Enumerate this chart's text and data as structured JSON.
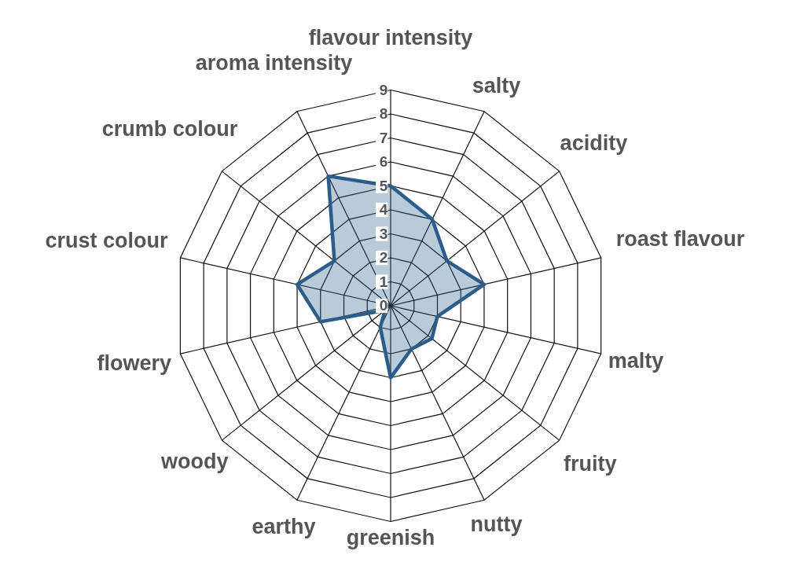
{
  "chart_data": {
    "type": "radar",
    "categories": [
      "flavour intensity",
      "salty",
      "acidity",
      "roast flavour",
      "malty",
      "fruity",
      "nutty",
      "greenish",
      "earthy",
      "woody",
      "flowery",
      "crust colour",
      "crumb colour",
      "aroma intensity"
    ],
    "series": [
      {
        "color": "#2c5d8a",
        "values": [
          5,
          4,
          3,
          4,
          2,
          2.2,
          2,
          3,
          1,
          0.3,
          3,
          4,
          3,
          6
        ]
      }
    ],
    "ylim": [
      0,
      9
    ],
    "yticks": [
      0,
      1,
      2,
      3,
      4,
      5,
      6,
      7,
      8,
      9
    ],
    "grid": true
  }
}
